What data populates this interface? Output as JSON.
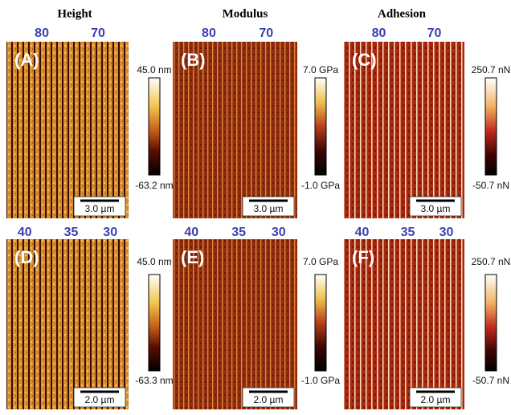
{
  "columns": [
    "Height",
    "Modulus",
    "Adhesion"
  ],
  "panels": [
    {
      "label": "(A)",
      "top_labels": [
        "80",
        "70"
      ],
      "colorbar_max": "45.0 nm",
      "colorbar_min": "-63.2 nm",
      "scale_bar": "3.0 µm"
    },
    {
      "label": "(B)",
      "top_labels": [
        "80",
        "70"
      ],
      "colorbar_max": "7.0 GPa",
      "colorbar_min": "-1.0 GPa",
      "scale_bar": "3.0 µm"
    },
    {
      "label": "(C)",
      "top_labels": [
        "80",
        "70"
      ],
      "colorbar_max": "250.7 nN",
      "colorbar_min": "-50.7 nN",
      "scale_bar": "3.0 µm"
    },
    {
      "label": "(D)",
      "top_labels": [
        "40",
        "35",
        "30"
      ],
      "colorbar_max": "45.0 nm",
      "colorbar_min": "-63.3 nm",
      "scale_bar": "2.0 µm"
    },
    {
      "label": "(E)",
      "top_labels": [
        "40",
        "35",
        "30"
      ],
      "colorbar_max": "7.0 GPa",
      "colorbar_min": "-1.0 GPa",
      "scale_bar": "2.0 µm"
    },
    {
      "label": "(F)",
      "top_labels": [
        "40",
        "35",
        "30"
      ],
      "colorbar_max": "250.7 nN",
      "colorbar_min": "-50.7 nN",
      "scale_bar": "2.0 µm"
    }
  ]
}
